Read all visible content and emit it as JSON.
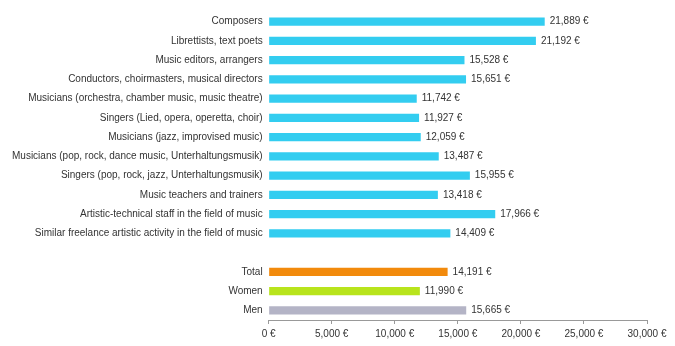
{
  "chart_data": {
    "type": "bar",
    "orientation": "horizontal",
    "categories": [
      "Composers",
      "Librettists, text poets",
      "Music editors, arrangers",
      "Conductors, choirmasters, musical directors",
      "Musicians (orchestra, chamber music, music theatre)",
      "Singers (Lied, opera, operetta, choir)",
      "Musicians (jazz, improvised music)",
      "Musicians (pop, rock, dance music, Unterhaltungsmusik)",
      "Singers (pop, rock, jazz, Unterhaltungsmusik)",
      "Music teachers and trainers",
      "Artistic-technical staff in the field of music",
      "Similar freelance artistic activity in the field of music",
      null,
      "Total",
      "Women",
      "Men"
    ],
    "values": [
      21889,
      21192,
      15528,
      15651,
      11742,
      11927,
      12059,
      13487,
      15955,
      13418,
      17966,
      14409,
      null,
      14191,
      11990,
      15665
    ],
    "value_labels": [
      "21,889 €",
      "21,192 €",
      "15,528 €",
      "15,651 €",
      "11,742 €",
      "11,927 €",
      "12,059 €",
      "13,487 €",
      "15,955 €",
      "13,418 €",
      "17,966 €",
      "14,409 €",
      null,
      "14,191 €",
      "11,990 €",
      "15,665 €"
    ],
    "colors": [
      "#33cdf0",
      "#33cdf0",
      "#33cdf0",
      "#33cdf0",
      "#33cdf0",
      "#33cdf0",
      "#33cdf0",
      "#33cdf0",
      "#33cdf0",
      "#33cdf0",
      "#33cdf0",
      "#33cdf0",
      null,
      "#f28a0c",
      "#b8e41c",
      "#b4b4c6"
    ],
    "xlim": [
      0,
      30000
    ],
    "xticks": [
      {
        "value": 0,
        "label": "0 €"
      },
      {
        "value": 5000,
        "label": "5,000 €"
      },
      {
        "value": 10000,
        "label": "10,000 €"
      },
      {
        "value": 15000,
        "label": "15,000 €"
      },
      {
        "value": 20000,
        "label": "20,000 €"
      },
      {
        "value": 25000,
        "label": "25,000 €"
      },
      {
        "value": 30000,
        "label": "30,000 €"
      }
    ],
    "grid": false,
    "data_labels": true
  }
}
